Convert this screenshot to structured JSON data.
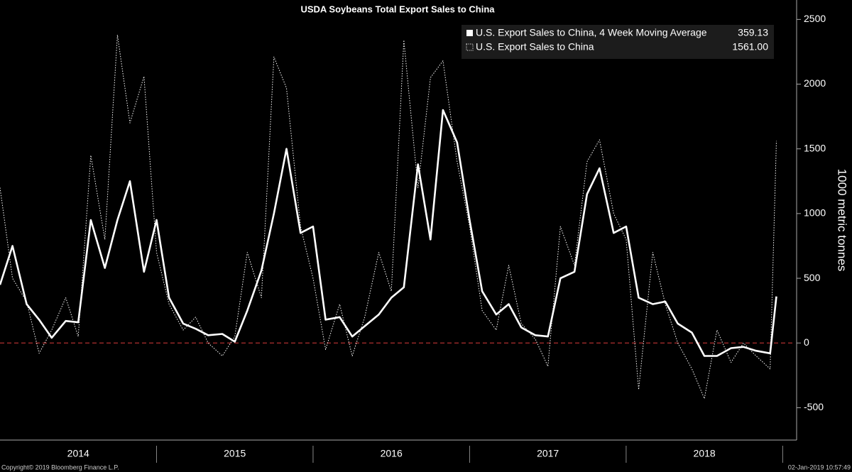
{
  "chart_data": {
    "type": "line",
    "title": "USDA Soybeans Total Export Sales to China",
    "y_label": "1000 metric tonnes",
    "footer_left": "Copyright© 2019 Bloomberg Finance L.P.",
    "footer_right": "02-Jan-2019 10:57:49",
    "x": [
      2014.0,
      2014.08,
      2014.17,
      2014.25,
      2014.33,
      2014.42,
      2014.5,
      2014.58,
      2014.67,
      2014.75,
      2014.83,
      2014.92,
      2015.0,
      2015.08,
      2015.17,
      2015.25,
      2015.33,
      2015.42,
      2015.5,
      2015.58,
      2015.67,
      2015.75,
      2015.83,
      2015.92,
      2016.0,
      2016.08,
      2016.17,
      2016.25,
      2016.33,
      2016.42,
      2016.5,
      2016.58,
      2016.67,
      2016.75,
      2016.83,
      2016.92,
      2017.0,
      2017.08,
      2017.17,
      2017.25,
      2017.33,
      2017.42,
      2017.5,
      2017.58,
      2017.67,
      2017.75,
      2017.83,
      2017.92,
      2018.0,
      2018.08,
      2018.17,
      2018.25,
      2018.33,
      2018.42,
      2018.5,
      2018.58,
      2018.67,
      2018.75,
      2018.83,
      2018.92,
      2018.96
    ],
    "series": [
      {
        "name": "U.S. Export Sales to China, 4 Week Moving Average",
        "legend_value": "359.13",
        "color": "#ffffff",
        "style": "solid",
        "values": [
          450,
          750,
          300,
          180,
          40,
          170,
          160,
          950,
          580,
          950,
          1250,
          550,
          950,
          350,
          150,
          110,
          60,
          70,
          10,
          250,
          560,
          1000,
          1500,
          850,
          900,
          180,
          200,
          50,
          130,
          220,
          350,
          430,
          1380,
          800,
          1800,
          1550,
          950,
          400,
          220,
          300,
          120,
          60,
          50,
          500,
          550,
          1150,
          1350,
          850,
          900,
          350,
          300,
          320,
          150,
          80,
          -100,
          -100,
          -40,
          -30,
          -60,
          -80,
          359.13
        ]
      },
      {
        "name": "U.S. Export Sales to China",
        "legend_value": "1561.00",
        "color": "#ffffff",
        "style": "dotted",
        "values": [
          1200,
          500,
          320,
          -80,
          100,
          350,
          50,
          1450,
          800,
          2380,
          1700,
          2060,
          700,
          300,
          100,
          200,
          0,
          -100,
          50,
          700,
          350,
          2210,
          1970,
          900,
          500,
          -50,
          300,
          -100,
          200,
          700,
          400,
          2340,
          1200,
          2050,
          2180,
          1400,
          900,
          250,
          100,
          600,
          150,
          30,
          -180,
          900,
          600,
          1400,
          1570,
          1000,
          800,
          -360,
          700,
          300,
          0,
          -200,
          -430,
          100,
          -150,
          0,
          -100,
          -200,
          1561
        ]
      }
    ],
    "xlim": [
      2014,
      2019.08
    ],
    "xticks": [
      {
        "value": 2014.5,
        "label": "2014"
      },
      {
        "value": 2015.5,
        "label": "2015"
      },
      {
        "value": 2016.5,
        "label": "2016"
      },
      {
        "value": 2017.5,
        "label": "2017"
      },
      {
        "value": 2018.5,
        "label": "2018"
      }
    ],
    "ylim": [
      -750,
      2650
    ],
    "yticks": [
      -500,
      0,
      500,
      1000,
      1500,
      2000,
      2500
    ],
    "hline": {
      "value": 0,
      "color": "#b03030"
    },
    "legend": "top-right",
    "grid": false
  }
}
